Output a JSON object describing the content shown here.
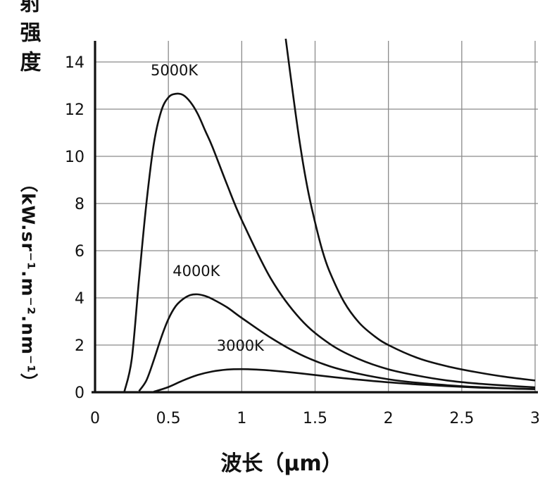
{
  "chart_data": {
    "type": "line",
    "xlabel": "波长（μm）",
    "ylabel_main": "辐射强度",
    "ylabel_unit": "（kW.sr⁻¹.m⁻².nm⁻¹）",
    "xlim": [
      0,
      3
    ],
    "ylim": [
      0,
      14
    ],
    "x_ticks": [
      "0",
      "0.5",
      "1",
      "1.5",
      "2",
      "2.5",
      "3"
    ],
    "y_ticks": [
      "0",
      "2",
      "4",
      "6",
      "8",
      "10",
      "12",
      "14"
    ],
    "grid": true,
    "series": [
      {
        "name": "5000K",
        "x": [
          0.2,
          0.25,
          0.3,
          0.35,
          0.4,
          0.45,
          0.5,
          0.55,
          0.6,
          0.65,
          0.7,
          0.75,
          0.8,
          0.9,
          1.0,
          1.2,
          1.4,
          1.6,
          1.8,
          2.0,
          2.2,
          2.4,
          2.6,
          2.8,
          3.0
        ],
        "y": [
          0.03,
          1.4,
          4.8,
          8.0,
          10.5,
          11.9,
          12.5,
          12.65,
          12.6,
          12.3,
          11.8,
          11.1,
          10.4,
          8.8,
          7.3,
          4.8,
          3.1,
          2.05,
          1.4,
          0.97,
          0.7,
          0.5,
          0.37,
          0.28,
          0.21
        ]
      },
      {
        "name": "4000K",
        "x": [
          0.3,
          0.35,
          0.4,
          0.45,
          0.5,
          0.55,
          0.6,
          0.65,
          0.7,
          0.75,
          0.8,
          0.9,
          1.0,
          1.2,
          1.4,
          1.6,
          1.8,
          2.0,
          2.2,
          2.4,
          2.6,
          2.8,
          3.0
        ],
        "y": [
          0.05,
          0.5,
          1.35,
          2.3,
          3.1,
          3.65,
          3.95,
          4.12,
          4.15,
          4.08,
          3.95,
          3.6,
          3.15,
          2.3,
          1.6,
          1.1,
          0.78,
          0.55,
          0.4,
          0.3,
          0.22,
          0.17,
          0.13
        ]
      },
      {
        "name": "3000K",
        "x": [
          0.4,
          0.5,
          0.6,
          0.7,
          0.8,
          0.9,
          1.0,
          1.1,
          1.2,
          1.4,
          1.6,
          1.8,
          2.0,
          2.2,
          2.4,
          2.6,
          2.8,
          3.0
        ],
        "y": [
          0.02,
          0.22,
          0.5,
          0.73,
          0.88,
          0.96,
          0.98,
          0.96,
          0.92,
          0.8,
          0.66,
          0.53,
          0.42,
          0.33,
          0.26,
          0.2,
          0.16,
          0.13
        ]
      },
      {
        "name": "",
        "x": [
          1.3,
          1.35,
          1.4,
          1.45,
          1.5,
          1.55,
          1.6,
          1.7,
          1.8,
          1.9,
          2.0,
          2.2,
          2.4,
          2.6,
          2.8,
          3.0
        ],
        "y": [
          15.0,
          12.6,
          10.4,
          8.6,
          7.2,
          6.0,
          5.1,
          3.8,
          2.95,
          2.4,
          2.0,
          1.45,
          1.1,
          0.85,
          0.65,
          0.5
        ]
      }
    ]
  }
}
